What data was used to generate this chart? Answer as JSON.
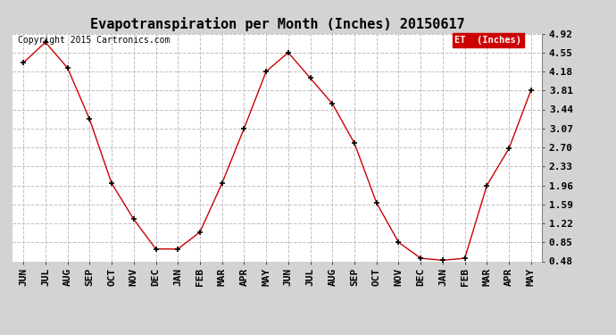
{
  "title": "Evapotranspiration per Month (Inches) 20150617",
  "copyright": "Copyright 2015 Cartronics.com",
  "legend_label": "ET  (Inches)",
  "legend_bg": "#cc0000",
  "legend_text_color": "#ffffff",
  "x_labels": [
    "JUN",
    "JUL",
    "AUG",
    "SEP",
    "OCT",
    "NOV",
    "DEC",
    "JAN",
    "FEB",
    "MAR",
    "APR",
    "MAY",
    "JUN",
    "JUL",
    "AUG",
    "SEP",
    "OCT",
    "NOV",
    "DEC",
    "JAN",
    "FEB",
    "MAR",
    "APR",
    "MAY"
  ],
  "y_values": [
    4.35,
    4.75,
    4.25,
    3.25,
    2.0,
    1.3,
    0.72,
    0.72,
    1.05,
    2.0,
    3.07,
    4.18,
    4.55,
    4.05,
    3.55,
    2.78,
    1.62,
    0.85,
    0.54,
    0.5,
    0.54,
    1.96,
    2.68,
    3.82
  ],
  "ylim_min": 0.48,
  "ylim_max": 4.92,
  "yticks": [
    0.48,
    0.85,
    1.22,
    1.59,
    1.96,
    2.33,
    2.7,
    3.07,
    3.44,
    3.81,
    4.18,
    4.55,
    4.92
  ],
  "line_color": "#cc0000",
  "marker": "+",
  "marker_color": "#000000",
  "bg_color": "#d3d3d3",
  "plot_bg_color": "#ffffff",
  "grid_color": "#c0c0c0",
  "title_fontsize": 11,
  "tick_fontsize": 8,
  "copyright_fontsize": 7
}
